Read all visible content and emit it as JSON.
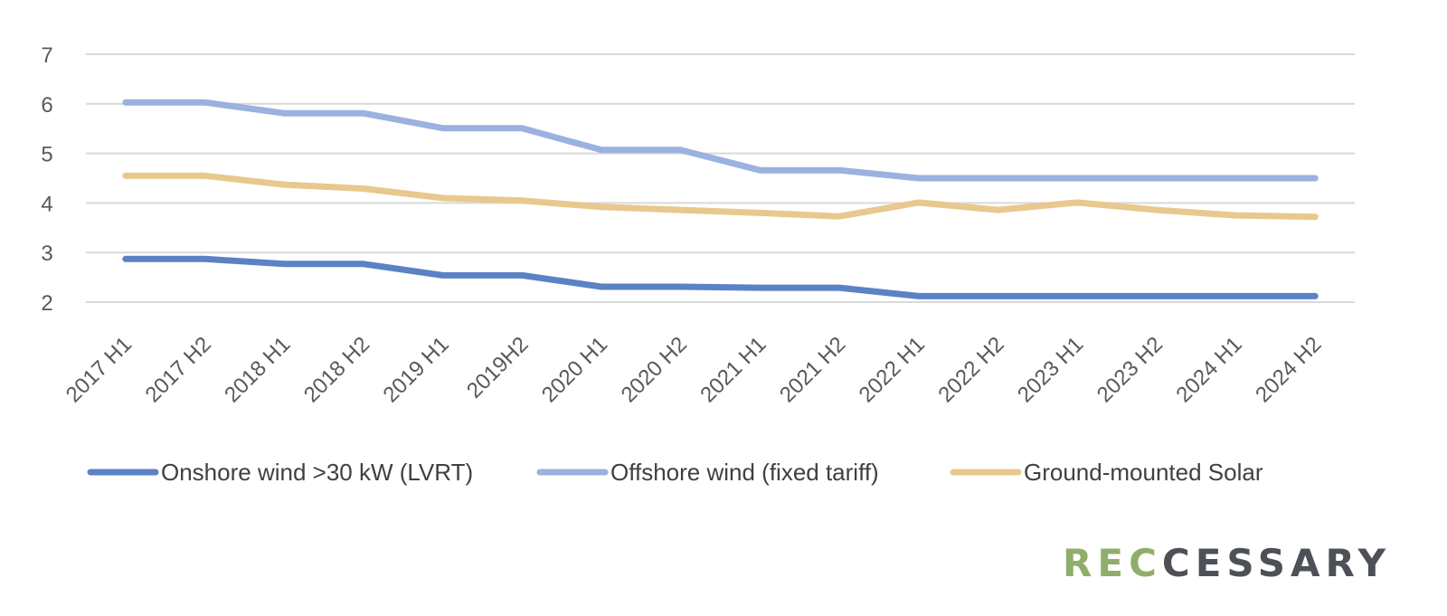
{
  "chart_data": {
    "type": "line",
    "title": "",
    "xlabel": "",
    "ylabel": "",
    "categories": [
      "2017 H1",
      "2017 H2",
      "2018 H1",
      "2018 H2",
      "2019 H1",
      "2019H2",
      "2020 H1",
      "2020 H2",
      "2021 H1",
      "2021 H2",
      "2022 H1",
      "2022 H2",
      "2023 H1",
      "2023 H2",
      "2024 H1",
      "2024 H2"
    ],
    "ylim": [
      2,
      7
    ],
    "yticks": [
      "2",
      "3",
      "4",
      "5",
      "6",
      "7"
    ],
    "grid": true,
    "legend_position": "bottom",
    "series": [
      {
        "name": "Onshore wind >30 kW (LVRT)",
        "color": "#5b82c4",
        "values": [
          2.87,
          2.87,
          2.77,
          2.77,
          2.54,
          2.54,
          2.31,
          2.31,
          2.29,
          2.29,
          2.12,
          2.12,
          2.12,
          2.12,
          2.12,
          2.12
        ]
      },
      {
        "name": "Offshore wind (fixed tariff)",
        "color": "#9bb1df",
        "values": [
          6.03,
          6.03,
          5.81,
          5.81,
          5.51,
          5.51,
          5.07,
          5.07,
          4.66,
          4.66,
          4.5,
          4.5,
          4.5,
          4.5,
          4.5,
          4.5
        ]
      },
      {
        "name": "Ground-mounted Solar",
        "color": "#e8c88e",
        "values": [
          4.55,
          4.55,
          4.37,
          4.29,
          4.1,
          4.05,
          3.92,
          3.86,
          3.8,
          3.73,
          4.01,
          3.86,
          4.01,
          3.86,
          3.75,
          3.72
        ]
      }
    ]
  },
  "logo": {
    "part1": "REC",
    "part2": "CESSARY"
  }
}
